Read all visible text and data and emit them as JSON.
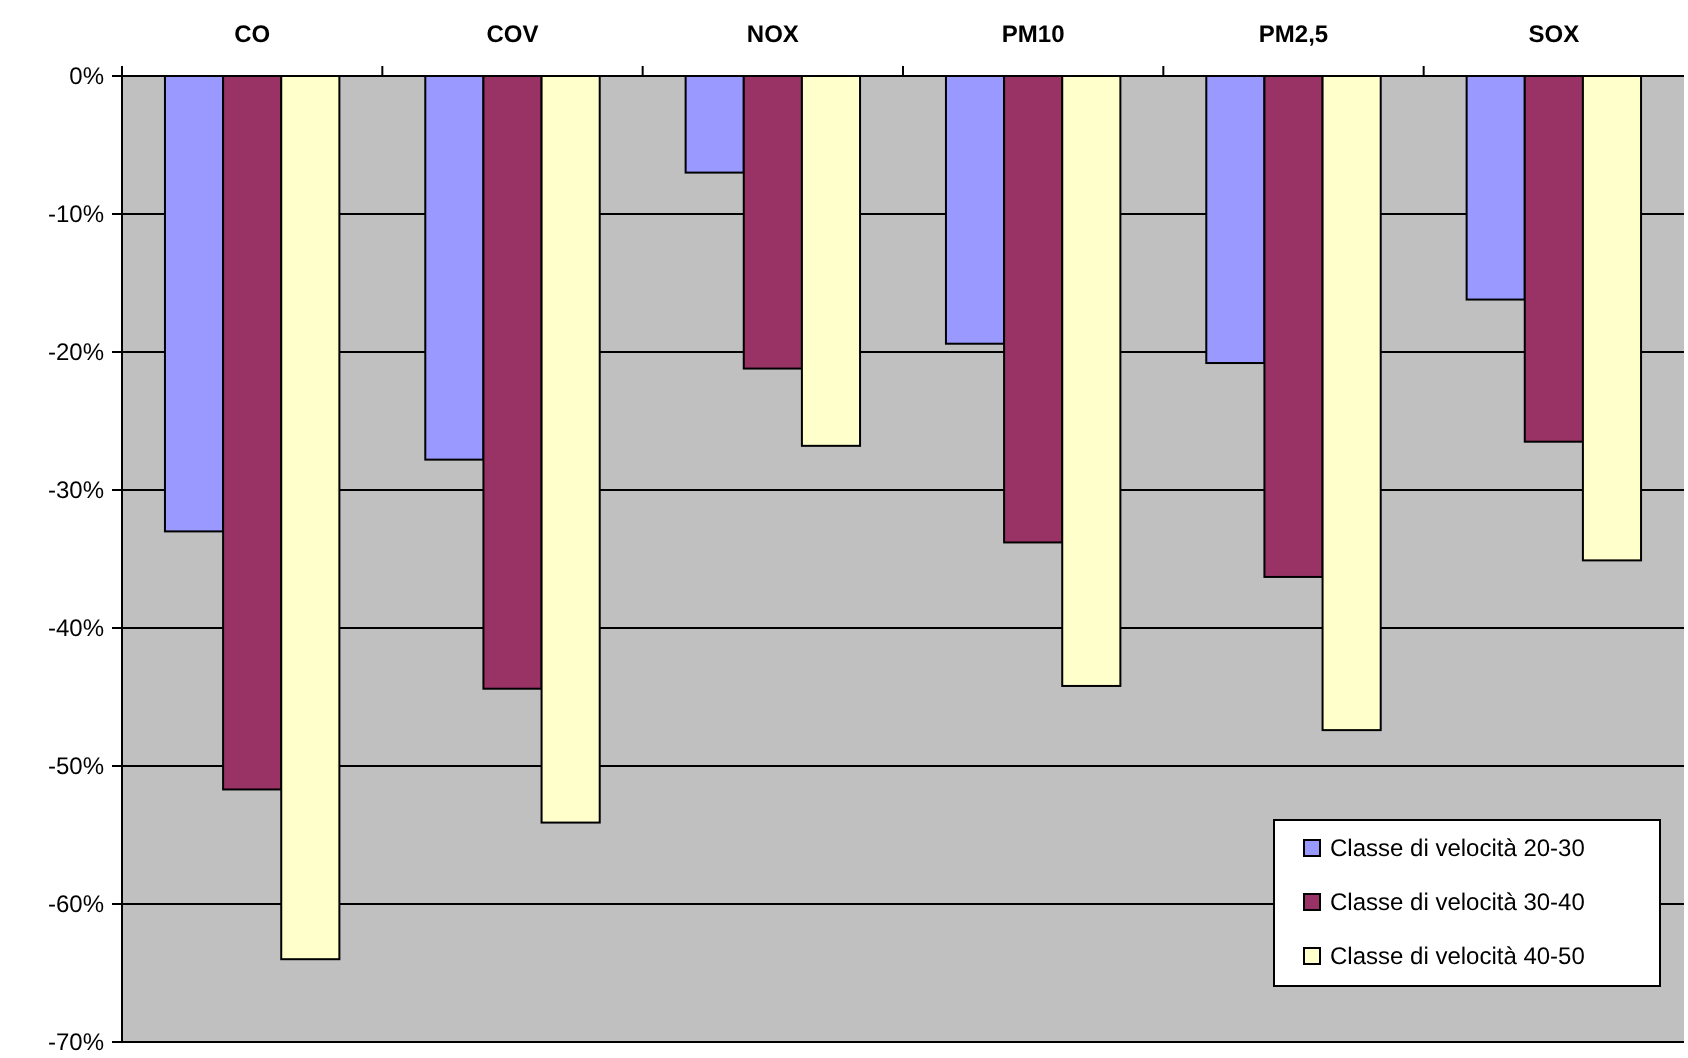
{
  "chart_data": {
    "type": "bar",
    "categories": [
      "CO",
      "COV",
      "NOX",
      "PM10",
      "PM2,5",
      "SOX"
    ],
    "series": [
      {
        "name": "Classe di velocità 20-30",
        "color": "#9999ff",
        "values": [
          -33,
          -27.8,
          -7,
          -19.4,
          -20.8,
          -16.2
        ]
      },
      {
        "name": "Classe di velocità 30-40",
        "color": "#993366",
        "values": [
          -51.7,
          -44.4,
          -21.2,
          -33.8,
          -36.3,
          -26.5
        ]
      },
      {
        "name": "Classe di velocità 40-50",
        "color": "#ffffcc",
        "values": [
          -64,
          -54.1,
          -26.8,
          -44.2,
          -47.4,
          -35.1
        ]
      }
    ],
    "ylim": [
      -70,
      0
    ],
    "yticks": [
      {
        "value": 0,
        "label": "0%"
      },
      {
        "value": -10,
        "label": "-10%"
      },
      {
        "value": -20,
        "label": "-20%"
      },
      {
        "value": -30,
        "label": "-30%"
      },
      {
        "value": -40,
        "label": "-40%"
      },
      {
        "value": -50,
        "label": "-50%"
      },
      {
        "value": -60,
        "label": "-60%"
      },
      {
        "value": -70,
        "label": "-70%"
      }
    ],
    "grid": "y",
    "legend": "bottom right"
  }
}
